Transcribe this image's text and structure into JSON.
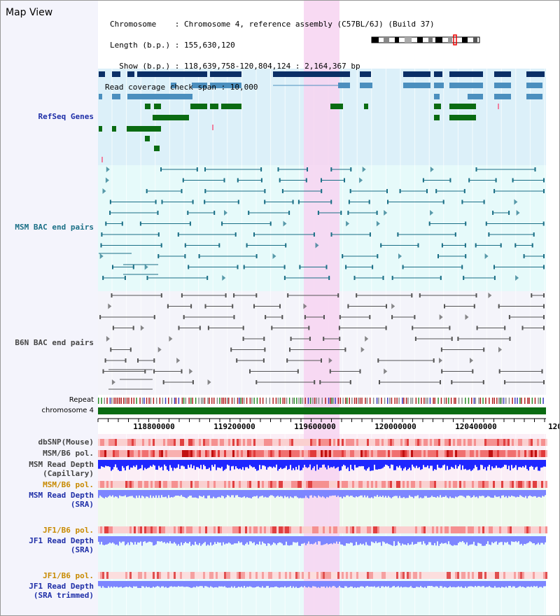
{
  "header": {
    "title": "Map View",
    "chromosome_line": "Chromosome    : Chromosome 4, reference assembly (C57BL/6J) (Build 37)",
    "length_line": "Length (b.p.) : 155,630,120",
    "show_line": "  Show (b.p.) : 118,639,758-120,804,124 : 2,164,367 bp",
    "span_line": "Read coverage check span : 10,000"
  },
  "tracks": {
    "refseq": "RefSeq Genes",
    "msm_bac": "MSM BAC end pairs",
    "b6n_bac": "B6N BAC end pairs",
    "repeat": "Repeat",
    "chromosome": "chromosome 4",
    "dbsnp": "dbSNP(Mouse)",
    "msm_pol": "MSM/B6 pol.",
    "msm_depth_cap": "MSM Read Depth\n(Capillary)",
    "msm_pol2": "MSM/B6 pol.",
    "msm_depth_sra": "MSM Read Depth\n(SRA)",
    "jf1_pol": "JF1/B6 pol.",
    "jf1_depth_sra": "JF1 Read Depth\n(SRA)",
    "jf1_pol2": "JF1/B6 pol.",
    "jf1_depth_trim": "JF1 Read Depth\n(SRA trimmed)"
  },
  "ruler": {
    "ticks": [
      "118800000",
      "119200000",
      "119600000",
      "120000000",
      "120400000",
      "120"
    ]
  },
  "colors": {
    "refseq_dark": "#0b2f66",
    "refseq_mid": "#4b8fbe",
    "refseq_green": "#0a6b12",
    "msm_pair": "#1a6f86",
    "b6n_pair": "#555555",
    "highlight": "#f7d3f1",
    "label_navy": "#1f2fa8",
    "label_teal": "#1a6f86",
    "label_gray": "#444444",
    "label_orange": "#c88a00",
    "depth_blue": "#1f27ff",
    "depth_light": "#7d86ff"
  },
  "icons": [
    "chromosome-ideogram"
  ]
}
